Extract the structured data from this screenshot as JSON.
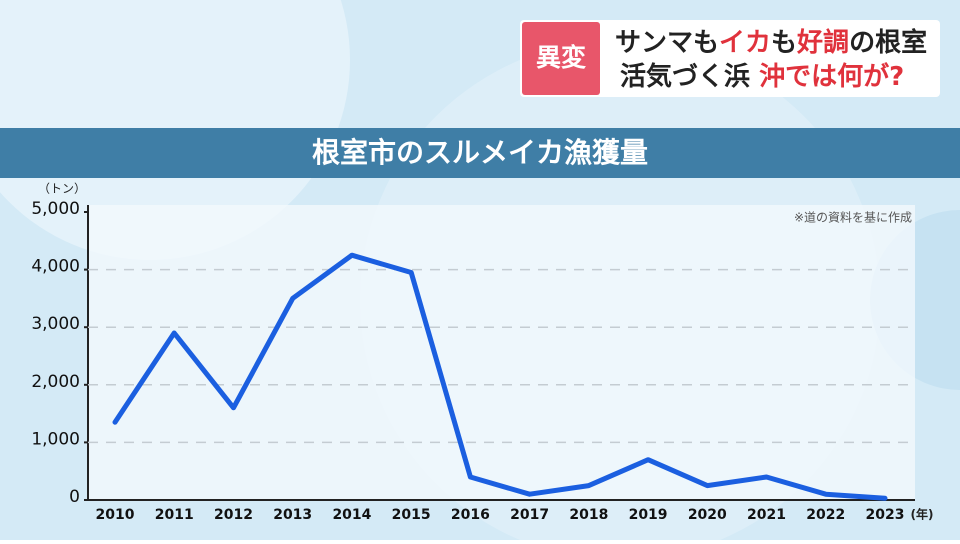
{
  "banner": {
    "tag": "異変",
    "line1": [
      {
        "text": "サンマも",
        "color": "#222222"
      },
      {
        "text": "イカ",
        "color": "#e0323c"
      },
      {
        "text": "も",
        "color": "#222222"
      },
      {
        "text": "好調",
        "color": "#e0323c"
      },
      {
        "text": "の根室",
        "color": "#222222"
      }
    ],
    "line2": [
      {
        "text": "活気づく浜 ",
        "color": "#222222"
      },
      {
        "text": "沖では何が?",
        "color": "#e0323c"
      }
    ]
  },
  "chart_data": {
    "type": "line",
    "title": "根室市のスルメイカ漁獲量",
    "y_unit": "（トン）",
    "x_unit": "(年)",
    "note": "※道の資料を基に作成",
    "categories": [
      "2010",
      "2011",
      "2012",
      "2013",
      "2014",
      "2015",
      "2016",
      "2017",
      "2018",
      "2019",
      "2020",
      "2021",
      "2022",
      "2023"
    ],
    "series": [
      {
        "name": "スルメイカ漁獲量",
        "color": "#1b5fe0",
        "values": [
          1350,
          2900,
          1600,
          3500,
          4250,
          3950,
          400,
          100,
          250,
          700,
          250,
          400,
          100,
          30
        ]
      }
    ],
    "ylim": [
      0,
      5000
    ],
    "yticks": [
      0,
      {
        "value": 1000,
        "label": "1,000"
      },
      {
        "value": 2000,
        "label": "2,000"
      },
      {
        "value": 3000,
        "label": "3,000"
      },
      {
        "value": 4000,
        "label": "4,000"
      },
      {
        "value": 5000,
        "label": "5,000"
      }
    ],
    "grid": true
  }
}
